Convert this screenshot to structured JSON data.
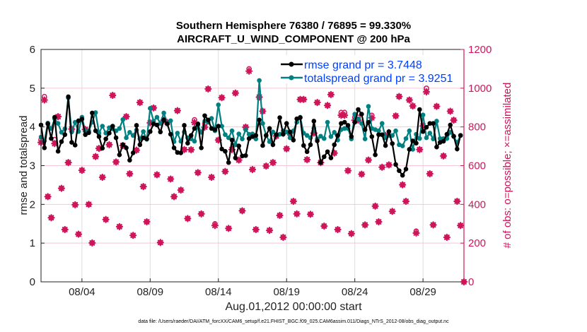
{
  "chart_data": {
    "type": "line",
    "title": [
      "Southern Hemisphere 76380 / 76895 = 99.330%",
      "AIRCRAFT_U_WIND_COMPONENT @ 200 hPa"
    ],
    "xlabel": "Aug.01,2012 00:00:00 start",
    "ylabel": "rmse and totalspread",
    "ylabel_right": "# of obs: o=possible; ×=assimilated",
    "xlim_day_of_august": [
      1,
      32
    ],
    "x_step_days": 0.25,
    "x_ticks": [
      4,
      9,
      14,
      19,
      24,
      29
    ],
    "x_tick_labels": [
      "08/04",
      "08/09",
      "08/14",
      "08/19",
      "08/24",
      "08/29"
    ],
    "ylim": [
      0,
      6
    ],
    "y_ticks": [
      0,
      1,
      2,
      3,
      4,
      5,
      6
    ],
    "ylim_right": [
      0,
      1200
    ],
    "y_ticks_right": [
      0,
      200,
      400,
      600,
      800,
      1000,
      1200
    ],
    "grid": true,
    "legend_placement": "top-right",
    "series": [
      {
        "name": "rmse grand pr = 3.7448",
        "color": "#000000",
        "values": [
          4.05,
          3.46,
          4.08,
          3.7,
          4.25,
          3.37,
          3.62,
          3.8,
          4.78,
          3.6,
          3.53,
          4.16,
          4.2,
          3.8,
          3.85,
          4.36,
          3.9,
          3.75,
          3.45,
          3.69,
          3.84,
          4.02,
          3.72,
          3.28,
          3.54,
          3.46,
          3.14,
          3.33,
          4.04,
          3.54,
          3.72,
          3.69,
          3.88,
          4.08,
          4.05,
          3.87,
          4.18,
          4.08,
          3.81,
          3.46,
          3.34,
          3.33,
          4.04,
          3.58,
          3.78,
          3.96,
          4.08,
          3.46,
          4.29,
          4.18,
          3.96,
          3.93,
          4.02,
          3.43,
          3.37,
          3.08,
          3.66,
          3.2,
          3.51,
          3.25,
          3.26,
          3.7,
          3.75,
          3.78,
          4.18,
          3.52,
          3.78,
          3.96,
          3.54,
          3.8,
          4.24,
          3.81,
          4.09,
          3.87,
          3.66,
          4.21,
          4.24,
          3.52,
          3.36,
          3.54,
          4.15,
          3.64,
          3.08,
          3.23,
          3.36,
          3.2,
          3.54,
          3.78,
          4.09,
          4.12,
          4.04,
          3.75,
          4.12,
          4.45,
          4.33,
          3.93,
          4.12,
          3.75,
          3.28,
          3.8,
          3.8,
          3.52,
          3.88,
          3.57,
          3.03,
          2.87,
          2.75,
          2.91,
          3.42,
          3.64,
          3.58,
          4.45,
          3.88,
          3.99,
          4.09,
          4.09,
          3.48,
          3.6,
          3.63,
          3.81,
          4.05,
          3.76,
          3.43,
          3.78
        ]
      },
      {
        "name": "totalspread grand pr = 3.9251",
        "color": "#008080",
        "values": [
          3.74,
          3.64,
          4.1,
          3.96,
          4.21,
          4.09,
          3.86,
          3.95,
          4.75,
          3.87,
          4.12,
          3.88,
          4.25,
          3.88,
          3.9,
          4.12,
          4.37,
          3.84,
          4.02,
          3.84,
          3.98,
          3.95,
          3.9,
          3.96,
          4.19,
          3.72,
          3.86,
          3.78,
          3.92,
          3.69,
          3.88,
          3.68,
          4.48,
          4.15,
          4.25,
          4.09,
          4.36,
          4.09,
          4.16,
          3.62,
          3.84,
          3.63,
          3.87,
          3.72,
          3.69,
          3.63,
          4.05,
          3.86,
          4.15,
          4.12,
          4.22,
          3.9,
          4.57,
          4.02,
          3.8,
          3.72,
          3.9,
          3.54,
          3.82,
          3.69,
          3.93,
          3.81,
          3.82,
          3.69,
          5.2,
          4.09,
          3.78,
          3.62,
          3.87,
          3.8,
          3.81,
          3.9,
          3.87,
          3.72,
          3.9,
          4.12,
          4.25,
          3.84,
          3.78,
          3.72,
          3.96,
          3.69,
          3.76,
          3.7,
          4.12,
          3.75,
          3.86,
          3.66,
          3.93,
          3.96,
          3.96,
          3.69,
          4.33,
          4.21,
          4.09,
          3.69,
          4.53,
          3.96,
          3.93,
          3.9,
          4.09,
          3.72,
          3.78,
          3.78,
          3.9,
          3.54,
          3.51,
          3.7,
          3.9,
          3.42,
          3.81,
          3.7,
          4.31,
          3.72,
          3.84,
          3.69,
          4.15,
          3.7,
          3.7,
          3.7,
          3.86,
          3.75,
          3.6,
          3.78
        ]
      }
    ],
    "obs_color": "#d0145a",
    "obs_possible": [
      735,
      957,
      440,
      331,
      735,
      853,
      483,
      270,
      616,
      789,
      398,
      246,
      576,
      787,
      400,
      201,
      647,
      689,
      540,
      322,
      708,
      963,
      619,
      285,
      704,
      853,
      558,
      240,
      680,
      926,
      492,
      310,
      821,
      898,
      553,
      203,
      835,
      823,
      531,
      440,
      884,
      474,
      683,
      327,
      682,
      837,
      564,
      351,
      818,
      996,
      540,
      300,
      732,
      951,
      570,
      276,
      683,
      975,
      629,
      367,
      799,
      1100,
      580,
      270,
      954,
      881,
      598,
      266,
      616,
      753,
      343,
      230,
      687,
      768,
      416,
      351,
      942,
      942,
      631,
      349,
      768,
      926,
      616,
      288,
      911,
      967,
      665,
      270,
      875,
      875,
      574,
      249,
      850,
      850,
      556,
      294,
      629,
      860,
      391,
      310,
      592,
      756,
      604,
      364,
      857,
      957,
      501,
      416,
      939,
      908,
      262,
      683,
      805,
      1000,
      558,
      294,
      906,
      1090,
      650,
      230,
      881,
      835,
      416,
      291,
      0
    ],
    "obs_assimilated": [
      720,
      939,
      440,
      331,
      714,
      853,
      483,
      270,
      616,
      789,
      398,
      246,
      576,
      787,
      400,
      201,
      647,
      689,
      540,
      322,
      708,
      963,
      619,
      285,
      704,
      853,
      558,
      240,
      680,
      926,
      492,
      310,
      821,
      898,
      553,
      203,
      835,
      823,
      531,
      440,
      884,
      474,
      683,
      327,
      682,
      823,
      564,
      351,
      799,
      996,
      540,
      291,
      732,
      951,
      570,
      276,
      683,
      975,
      629,
      367,
      799,
      1088,
      580,
      270,
      954,
      881,
      598,
      266,
      616,
      753,
      343,
      230,
      687,
      768,
      416,
      351,
      942,
      942,
      631,
      349,
      768,
      926,
      616,
      288,
      911,
      967,
      665,
      270,
      860,
      860,
      574,
      249,
      835,
      835,
      556,
      294,
      629,
      847,
      391,
      310,
      592,
      756,
      604,
      364,
      857,
      957,
      501,
      416,
      939,
      908,
      252,
      683,
      805,
      981,
      558,
      294,
      906,
      1078,
      650,
      230,
      881,
      835,
      416,
      291,
      0
    ]
  },
  "footer": {
    "data_file": "data file: /Users/raeder/DAI/ATM_forcXX/CAM6_setup/f.e21.FHIST_BGC.f09_025.CAM6assim.011/Diags_NTrS_2012-08/obs_diag_output.nc"
  },
  "legend_text_color": "#0040ff"
}
